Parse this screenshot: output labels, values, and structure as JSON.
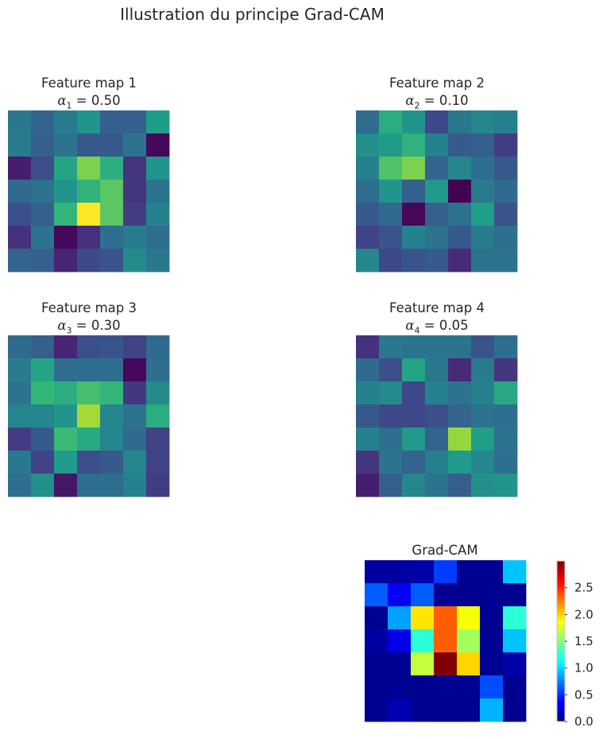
{
  "figure": {
    "suptitle": "Illustration du principe Grad-CAM"
  },
  "chart_data": [
    {
      "type": "heatmap",
      "title": "Feature map 1",
      "alpha_symbol": "α",
      "alpha_index": "1",
      "alpha_text": " = 0.50",
      "alpha": 0.5,
      "colormap": "viridis",
      "vmin": 0,
      "vmax": 1,
      "values": [
        [
          0.4,
          0.32,
          0.42,
          0.52,
          0.3,
          0.3,
          0.55
        ],
        [
          0.42,
          0.3,
          0.38,
          0.28,
          0.28,
          0.38,
          0.02
        ],
        [
          0.08,
          0.24,
          0.58,
          0.8,
          0.62,
          0.15,
          0.52
        ],
        [
          0.34,
          0.38,
          0.52,
          0.64,
          0.74,
          0.16,
          0.38
        ],
        [
          0.24,
          0.3,
          0.66,
          1.0,
          0.74,
          0.18,
          0.44
        ],
        [
          0.14,
          0.38,
          0.02,
          0.14,
          0.36,
          0.42,
          0.36
        ],
        [
          0.32,
          0.3,
          0.1,
          0.22,
          0.26,
          0.48,
          0.4
        ]
      ]
    },
    {
      "type": "heatmap",
      "title": "Feature map 2",
      "alpha_symbol": "α",
      "alpha_index": "2",
      "alpha_text": " = 0.10",
      "alpha": 0.1,
      "colormap": "viridis",
      "vmin": 0,
      "vmax": 1,
      "values": [
        [
          0.35,
          0.62,
          0.52,
          0.22,
          0.4,
          0.46,
          0.44
        ],
        [
          0.5,
          0.55,
          0.64,
          0.44,
          0.28,
          0.3,
          0.18
        ],
        [
          0.44,
          0.72,
          0.8,
          0.32,
          0.46,
          0.36,
          0.28
        ],
        [
          0.36,
          0.52,
          0.3,
          0.54,
          0.0,
          0.42,
          0.34
        ],
        [
          0.28,
          0.34,
          0.02,
          0.3,
          0.38,
          0.56,
          0.26
        ],
        [
          0.2,
          0.26,
          0.44,
          0.38,
          0.28,
          0.42,
          0.36
        ],
        [
          0.46,
          0.22,
          0.26,
          0.28,
          0.12,
          0.38,
          0.38
        ]
      ]
    },
    {
      "type": "heatmap",
      "title": "Feature map 3",
      "alpha_symbol": "α",
      "alpha_index": "3",
      "alpha_text": " = 0.30",
      "alpha": 0.3,
      "colormap": "viridis",
      "vmin": 0,
      "vmax": 1,
      "values": [
        [
          0.34,
          0.3,
          0.1,
          0.24,
          0.26,
          0.2,
          0.34
        ],
        [
          0.42,
          0.58,
          0.36,
          0.36,
          0.36,
          0.02,
          0.36
        ],
        [
          0.38,
          0.66,
          0.62,
          0.7,
          0.66,
          0.16,
          0.48
        ],
        [
          0.46,
          0.46,
          0.52,
          0.86,
          0.46,
          0.38,
          0.62
        ],
        [
          0.18,
          0.28,
          0.68,
          0.6,
          0.46,
          0.34,
          0.2
        ],
        [
          0.4,
          0.2,
          0.54,
          0.24,
          0.28,
          0.46,
          0.2
        ],
        [
          0.36,
          0.5,
          0.06,
          0.36,
          0.36,
          0.44,
          0.18
        ]
      ]
    },
    {
      "type": "heatmap",
      "title": "Feature map 4",
      "alpha_symbol": "α",
      "alpha_index": "4",
      "alpha_text": " = 0.05",
      "alpha": 0.05,
      "colormap": "viridis",
      "vmin": 0,
      "vmax": 1,
      "values": [
        [
          0.14,
          0.4,
          0.38,
          0.38,
          0.38,
          0.26,
          0.36
        ],
        [
          0.34,
          0.24,
          0.58,
          0.4,
          0.12,
          0.42,
          0.16
        ],
        [
          0.44,
          0.48,
          0.22,
          0.44,
          0.38,
          0.44,
          0.6
        ],
        [
          0.28,
          0.22,
          0.22,
          0.24,
          0.32,
          0.38,
          0.36
        ],
        [
          0.44,
          0.36,
          0.54,
          0.32,
          0.84,
          0.56,
          0.38
        ],
        [
          0.16,
          0.38,
          0.32,
          0.44,
          0.54,
          0.46,
          0.36
        ],
        [
          0.08,
          0.3,
          0.46,
          0.38,
          0.3,
          0.5,
          0.52
        ]
      ]
    },
    {
      "type": "heatmap",
      "title": "Grad-CAM",
      "colormap": "jet",
      "vmin": 0,
      "vmax": 3.0,
      "colorbar": {
        "ticks": [
          "0.0",
          "0.5",
          "1.0",
          "1.5",
          "2.0",
          "2.5"
        ],
        "tick_values": [
          0,
          0.5,
          1.0,
          1.5,
          2.0,
          2.5
        ]
      },
      "values": [
        [
          0.1,
          0.1,
          0.12,
          0.55,
          0.05,
          0.05,
          0.95
        ],
        [
          0.65,
          0.35,
          0.65,
          0.05,
          0.05,
          0.05,
          0.05
        ],
        [
          0.05,
          0.85,
          1.95,
          2.35,
          1.85,
          0.05,
          1.25
        ],
        [
          0.1,
          0.3,
          1.25,
          2.35,
          1.6,
          0.05,
          0.95
        ],
        [
          0.05,
          0.05,
          1.7,
          3.0,
          2.0,
          0.05,
          0.12
        ],
        [
          0.05,
          0.05,
          0.05,
          0.05,
          0.05,
          0.6,
          0.05
        ],
        [
          0.05,
          0.15,
          0.05,
          0.05,
          0.05,
          0.9,
          0.05
        ]
      ]
    }
  ]
}
